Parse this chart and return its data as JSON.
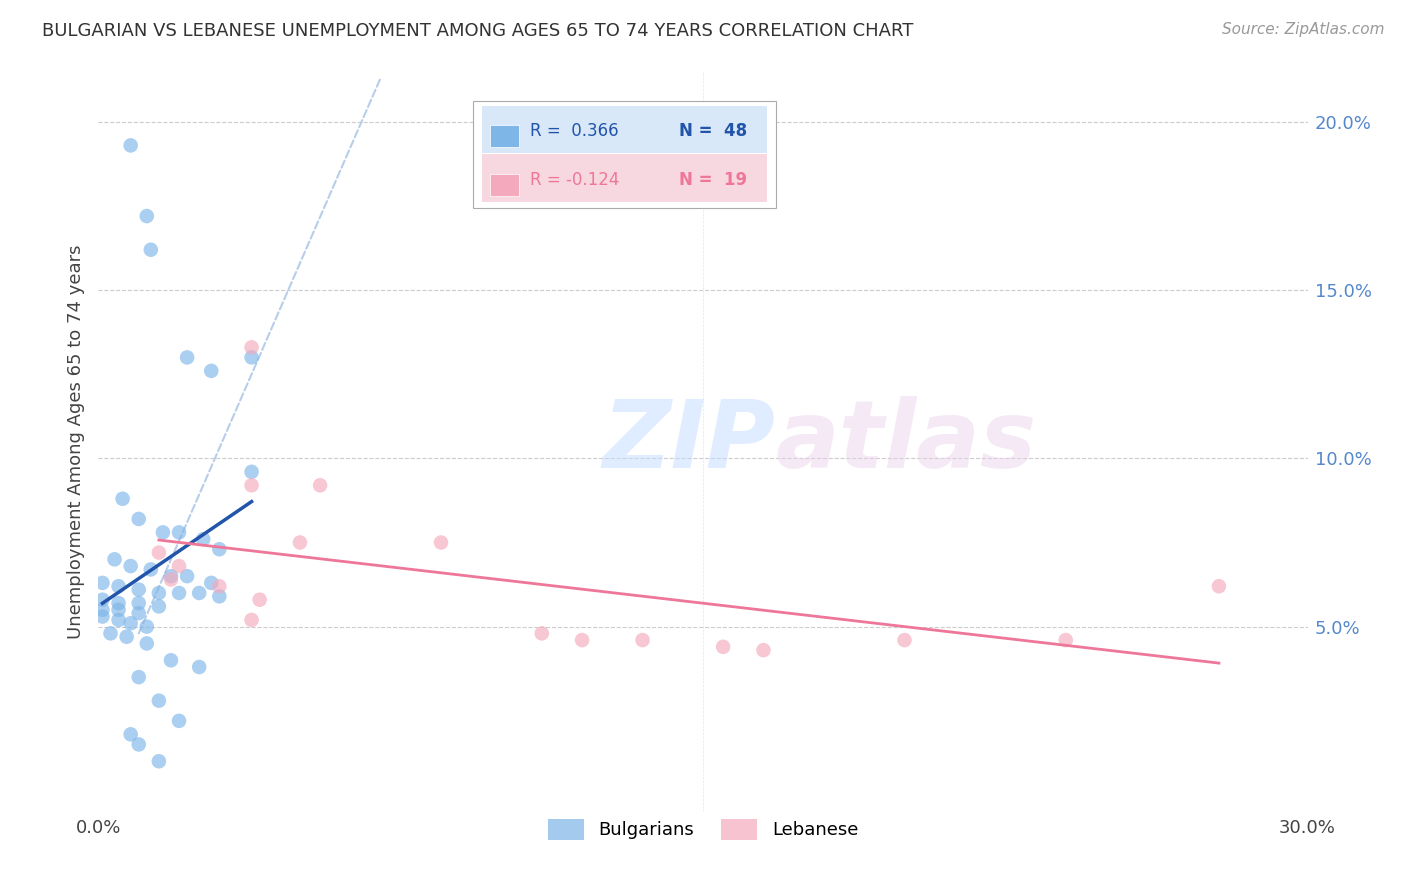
{
  "title": "BULGARIAN VS LEBANESE UNEMPLOYMENT AMONG AGES 65 TO 74 YEARS CORRELATION CHART",
  "source": "Source: ZipAtlas.com",
  "ylabel": "Unemployment Among Ages 65 to 74 years",
  "xlim": [
    0.0,
    0.3
  ],
  "ylim": [
    -0.005,
    0.215
  ],
  "xticks": [
    0.0,
    0.05,
    0.1,
    0.15,
    0.2,
    0.25,
    0.3
  ],
  "xtick_labels": [
    "0.0%",
    "",
    "",
    "",
    "",
    "",
    "30.0%"
  ],
  "yticks": [
    0.05,
    0.1,
    0.15,
    0.2
  ],
  "ytick_labels": [
    "5.0%",
    "10.0%",
    "15.0%",
    "20.0%"
  ],
  "legend_r_blue": "R =  0.366",
  "legend_n_blue": "N =  48",
  "legend_r_pink": "R = -0.124",
  "legend_n_pink": "N =  19",
  "blue_color": "#7EB6E8",
  "pink_color": "#F4AABC",
  "regression_blue_color": "#2255AA",
  "regression_pink_color": "#EE7799",
  "dashed_line_color": "#B0C8E8",
  "watermark_zip": "ZIP",
  "watermark_atlas": "atlas",
  "bg_color": "#FFFFFF",
  "grid_color": "#CCCCCC",
  "blue_scatter": [
    [
      0.008,
      0.193
    ],
    [
      0.012,
      0.172
    ],
    [
      0.013,
      0.162
    ],
    [
      0.022,
      0.13
    ],
    [
      0.028,
      0.126
    ],
    [
      0.038,
      0.13
    ],
    [
      0.038,
      0.096
    ],
    [
      0.006,
      0.088
    ],
    [
      0.01,
      0.082
    ],
    [
      0.016,
      0.078
    ],
    [
      0.02,
      0.078
    ],
    [
      0.026,
      0.076
    ],
    [
      0.03,
      0.073
    ],
    [
      0.004,
      0.07
    ],
    [
      0.008,
      0.068
    ],
    [
      0.013,
      0.067
    ],
    [
      0.018,
      0.065
    ],
    [
      0.022,
      0.065
    ],
    [
      0.028,
      0.063
    ],
    [
      0.001,
      0.063
    ],
    [
      0.005,
      0.062
    ],
    [
      0.01,
      0.061
    ],
    [
      0.015,
      0.06
    ],
    [
      0.02,
      0.06
    ],
    [
      0.025,
      0.06
    ],
    [
      0.03,
      0.059
    ],
    [
      0.001,
      0.058
    ],
    [
      0.005,
      0.057
    ],
    [
      0.01,
      0.057
    ],
    [
      0.015,
      0.056
    ],
    [
      0.001,
      0.055
    ],
    [
      0.005,
      0.055
    ],
    [
      0.01,
      0.054
    ],
    [
      0.001,
      0.053
    ],
    [
      0.005,
      0.052
    ],
    [
      0.008,
      0.051
    ],
    [
      0.012,
      0.05
    ],
    [
      0.003,
      0.048
    ],
    [
      0.007,
      0.047
    ],
    [
      0.012,
      0.045
    ],
    [
      0.018,
      0.04
    ],
    [
      0.025,
      0.038
    ],
    [
      0.01,
      0.035
    ],
    [
      0.015,
      0.028
    ],
    [
      0.02,
      0.022
    ],
    [
      0.008,
      0.018
    ],
    [
      0.01,
      0.015
    ],
    [
      0.015,
      0.01
    ]
  ],
  "pink_scatter": [
    [
      0.038,
      0.133
    ],
    [
      0.038,
      0.092
    ],
    [
      0.055,
      0.092
    ],
    [
      0.015,
      0.072
    ],
    [
      0.02,
      0.068
    ],
    [
      0.018,
      0.064
    ],
    [
      0.03,
      0.062
    ],
    [
      0.04,
      0.058
    ],
    [
      0.05,
      0.075
    ],
    [
      0.038,
      0.052
    ],
    [
      0.085,
      0.075
    ],
    [
      0.11,
      0.048
    ],
    [
      0.12,
      0.046
    ],
    [
      0.135,
      0.046
    ],
    [
      0.155,
      0.044
    ],
    [
      0.165,
      0.043
    ],
    [
      0.2,
      0.046
    ],
    [
      0.24,
      0.046
    ],
    [
      0.278,
      0.062
    ]
  ]
}
